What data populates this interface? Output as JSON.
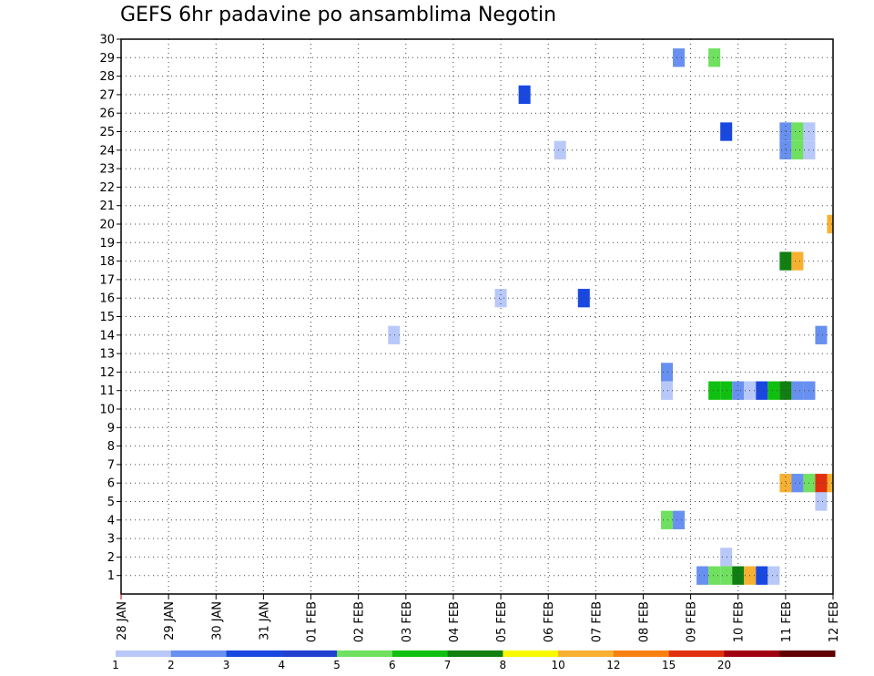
{
  "chart_data": {
    "type": "heatmap",
    "title": "GEFS 6hr padavine po ansamblima Negotin",
    "xlabel": "",
    "ylabel": "",
    "x_ticks": [
      "28 JAN",
      "29 JAN",
      "30 JAN",
      "31 JAN",
      "01 FEB",
      "02 FEB",
      "03 FEB",
      "04 FEB",
      "05 FEB",
      "06 FEB",
      "07 FEB",
      "08 FEB",
      "09 FEB",
      "10 FEB",
      "11 FEB",
      "12 FEB"
    ],
    "x_range_days": [
      0,
      15
    ],
    "y_ticks": [
      1,
      2,
      3,
      4,
      5,
      6,
      7,
      8,
      9,
      10,
      11,
      12,
      13,
      14,
      15,
      16,
      17,
      18,
      19,
      20,
      21,
      22,
      23,
      24,
      25,
      26,
      27,
      28,
      29,
      30
    ],
    "y_range": [
      0,
      30
    ],
    "grid": true,
    "colorbar": {
      "labels": [
        "1",
        "2",
        "3",
        "4",
        "5",
        "6",
        "7",
        "8",
        "10",
        "12",
        "15",
        "20"
      ],
      "colors": [
        "#b8c8f8",
        "#6890f0",
        "#1848e0",
        "#2040d0",
        "#70e060",
        "#10c010",
        "#108010",
        "#f8f800",
        "#f8b030",
        "#f88010",
        "#e03010",
        "#a00010",
        "#600000"
      ]
    },
    "cells": [
      {
        "t": 11.75,
        "m": 29,
        "color": "#6890f0"
      },
      {
        "t": 12.5,
        "m": 29,
        "color": "#70e060"
      },
      {
        "t": 8.5,
        "m": 27,
        "color": "#1848e0"
      },
      {
        "t": 12.75,
        "m": 25,
        "color": "#1848e0"
      },
      {
        "t": 14.0,
        "m": 25,
        "color": "#6890f0"
      },
      {
        "t": 14.25,
        "m": 25,
        "color": "#70e060"
      },
      {
        "t": 14.5,
        "m": 25,
        "color": "#b8c8f8"
      },
      {
        "t": 14.0,
        "m": 24,
        "color": "#6890f0"
      },
      {
        "t": 14.25,
        "m": 24,
        "color": "#70e060"
      },
      {
        "t": 14.5,
        "m": 24,
        "color": "#b8c8f8"
      },
      {
        "t": 9.25,
        "m": 24,
        "color": "#b8c8f8"
      },
      {
        "t": 15.0,
        "m": 20,
        "color": "#f8b030"
      },
      {
        "t": 14.0,
        "m": 18,
        "color": "#108010"
      },
      {
        "t": 14.25,
        "m": 18,
        "color": "#f8b030"
      },
      {
        "t": 8.0,
        "m": 16,
        "color": "#b8c8f8"
      },
      {
        "t": 9.75,
        "m": 16,
        "color": "#1848e0"
      },
      {
        "t": 5.75,
        "m": 14,
        "color": "#b8c8f8"
      },
      {
        "t": 14.75,
        "m": 14,
        "color": "#6890f0"
      },
      {
        "t": 11.5,
        "m": 12,
        "color": "#6890f0"
      },
      {
        "t": 11.5,
        "m": 11,
        "color": "#b8c8f8"
      },
      {
        "t": 12.5,
        "m": 11,
        "color": "#10c010"
      },
      {
        "t": 12.75,
        "m": 11,
        "color": "#10c010"
      },
      {
        "t": 13.0,
        "m": 11,
        "color": "#6890f0"
      },
      {
        "t": 13.25,
        "m": 11,
        "color": "#b8c8f8"
      },
      {
        "t": 13.5,
        "m": 11,
        "color": "#1848e0"
      },
      {
        "t": 13.75,
        "m": 11,
        "color": "#10c010"
      },
      {
        "t": 14.0,
        "m": 11,
        "color": "#108010"
      },
      {
        "t": 14.25,
        "m": 11,
        "color": "#6890f0"
      },
      {
        "t": 14.5,
        "m": 11,
        "color": "#6890f0"
      },
      {
        "t": 14.0,
        "m": 6,
        "color": "#f8b030"
      },
      {
        "t": 14.25,
        "m": 6,
        "color": "#6890f0"
      },
      {
        "t": 14.5,
        "m": 6,
        "color": "#70e060"
      },
      {
        "t": 14.75,
        "m": 6,
        "color": "#e03010"
      },
      {
        "t": 15.0,
        "m": 6,
        "color": "#f8b030"
      },
      {
        "t": 14.75,
        "m": 5,
        "color": "#b8c8f8"
      },
      {
        "t": 11.5,
        "m": 4,
        "color": "#70e060"
      },
      {
        "t": 11.75,
        "m": 4,
        "color": "#6890f0"
      },
      {
        "t": 12.75,
        "m": 2,
        "color": "#b8c8f8"
      },
      {
        "t": 12.25,
        "m": 1,
        "color": "#6890f0"
      },
      {
        "t": 12.5,
        "m": 1,
        "color": "#70e060"
      },
      {
        "t": 12.75,
        "m": 1,
        "color": "#70e060"
      },
      {
        "t": 13.0,
        "m": 1,
        "color": "#108010"
      },
      {
        "t": 13.25,
        "m": 1,
        "color": "#f8b030"
      },
      {
        "t": 13.5,
        "m": 1,
        "color": "#1848e0"
      },
      {
        "t": 13.75,
        "m": 1,
        "color": "#b8c8f8"
      }
    ]
  }
}
